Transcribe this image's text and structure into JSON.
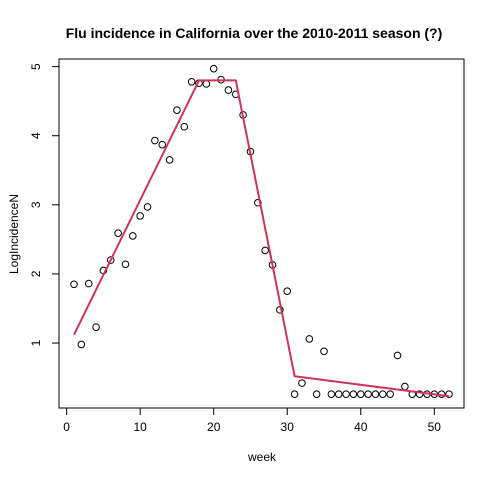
{
  "chart_data": {
    "type": "scatter",
    "title": "Flu incidence in California over the 2010-2011 season (?)",
    "xlabel": "week",
    "ylabel": "LogIncidenceN",
    "xlim": [
      -1.04,
      54.04
    ],
    "ylim": [
      0.06,
      5.11
    ],
    "xticks": [
      0,
      10,
      20,
      30,
      40,
      50
    ],
    "yticks": [
      1,
      2,
      3,
      4,
      5
    ],
    "grid": false,
    "points": [
      {
        "x": 1,
        "y": 1.85
      },
      {
        "x": 2,
        "y": 0.98
      },
      {
        "x": 3,
        "y": 1.86
      },
      {
        "x": 4,
        "y": 1.23
      },
      {
        "x": 5,
        "y": 2.05
      },
      {
        "x": 6,
        "y": 2.2
      },
      {
        "x": 7,
        "y": 2.59
      },
      {
        "x": 8,
        "y": 2.14
      },
      {
        "x": 9,
        "y": 2.55
      },
      {
        "x": 10,
        "y": 2.84
      },
      {
        "x": 11,
        "y": 2.97
      },
      {
        "x": 12,
        "y": 3.93
      },
      {
        "x": 13,
        "y": 3.87
      },
      {
        "x": 14,
        "y": 3.65
      },
      {
        "x": 15,
        "y": 4.37
      },
      {
        "x": 16,
        "y": 4.13
      },
      {
        "x": 17,
        "y": 4.78
      },
      {
        "x": 18,
        "y": 4.76
      },
      {
        "x": 19,
        "y": 4.75
      },
      {
        "x": 20,
        "y": 4.97
      },
      {
        "x": 21,
        "y": 4.81
      },
      {
        "x": 22,
        "y": 4.66
      },
      {
        "x": 23,
        "y": 4.6
      },
      {
        "x": 24,
        "y": 4.3
      },
      {
        "x": 25,
        "y": 3.77
      },
      {
        "x": 26,
        "y": 3.03
      },
      {
        "x": 27,
        "y": 2.34
      },
      {
        "x": 28,
        "y": 2.13
      },
      {
        "x": 29,
        "y": 1.48
      },
      {
        "x": 30,
        "y": 1.75
      },
      {
        "x": 31,
        "y": 0.26
      },
      {
        "x": 32,
        "y": 0.42
      },
      {
        "x": 33,
        "y": 1.06
      },
      {
        "x": 34,
        "y": 0.26
      },
      {
        "x": 35,
        "y": 0.88
      },
      {
        "x": 36,
        "y": 0.26
      },
      {
        "x": 37,
        "y": 0.26
      },
      {
        "x": 38,
        "y": 0.26
      },
      {
        "x": 39,
        "y": 0.26
      },
      {
        "x": 40,
        "y": 0.26
      },
      {
        "x": 41,
        "y": 0.26
      },
      {
        "x": 42,
        "y": 0.26
      },
      {
        "x": 43,
        "y": 0.26
      },
      {
        "x": 44,
        "y": 0.26
      },
      {
        "x": 45,
        "y": 0.82
      },
      {
        "x": 46,
        "y": 0.37
      },
      {
        "x": 47,
        "y": 0.26
      },
      {
        "x": 48,
        "y": 0.26
      },
      {
        "x": 49,
        "y": 0.26
      },
      {
        "x": 50,
        "y": 0.26
      },
      {
        "x": 51,
        "y": 0.26
      },
      {
        "x": 52,
        "y": 0.26
      }
    ],
    "fit_line": {
      "color": "#d0335a",
      "points": [
        {
          "x": 1,
          "y": 1.12
        },
        {
          "x": 18,
          "y": 4.8
        },
        {
          "x": 23,
          "y": 4.8
        },
        {
          "x": 31,
          "y": 0.52
        },
        {
          "x": 52,
          "y": 0.23
        }
      ]
    },
    "point_color": "#000000"
  }
}
